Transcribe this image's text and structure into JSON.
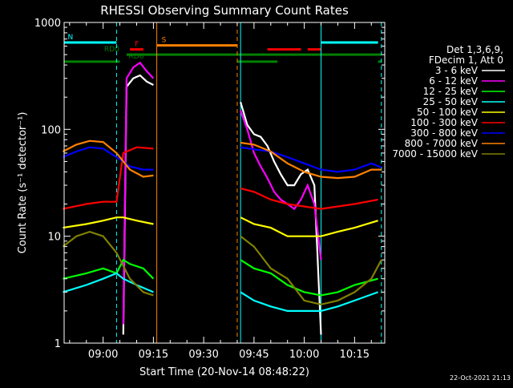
{
  "chart_data": {
    "type": "line",
    "title": "RHESSI Observing Summary Count Rates",
    "xlabel": "Start Time (20-Nov-14 08:48:22)",
    "ylabel": "Count Rate (s⁻¹ detector⁻¹)",
    "yscale": "log",
    "ylim": [
      1,
      1000
    ],
    "xlim": [
      "08:48:22",
      "10:24:00"
    ],
    "xticks": [
      "09:00",
      "09:15",
      "09:30",
      "09:45",
      "10:00",
      "10:15"
    ],
    "yticks": [
      "1",
      "10",
      "100",
      "1000"
    ],
    "legend_header": [
      "Det 1,3,6,9,",
      "FDecim 1, Att 0"
    ],
    "legend_placement": "right",
    "timestamp": "22-Oct-2021 21:13",
    "flags": [
      {
        "label": "N",
        "color": "#00ffff",
        "level": 650,
        "segments": [
          [
            "08:48",
            "09:04"
          ],
          [
            "10:05",
            "10:22"
          ]
        ]
      },
      {
        "label": "S",
        "color": "#ff8000",
        "level": 610,
        "segments": [
          [
            "09:16",
            "09:40"
          ]
        ]
      },
      {
        "label": "F",
        "color": "#ff0000",
        "level": 560,
        "segments": [
          [
            "09:08",
            "09:12"
          ],
          [
            "09:49",
            "09:59"
          ],
          [
            "10:01",
            "10:05"
          ]
        ]
      },
      {
        "label": "RD0",
        "color": "#008000",
        "level": 500,
        "segments": [
          [
            "09:07",
            "10:23"
          ]
        ]
      },
      {
        "label": "RD6",
        "color": "#008000",
        "level": 430,
        "segments": [
          [
            "08:48",
            "09:05"
          ],
          [
            "09:40",
            "09:52"
          ],
          [
            "10:22",
            "10:23"
          ]
        ]
      }
    ],
    "vlines": [
      {
        "time": "09:04",
        "color": "#00ffff",
        "style": "dashed"
      },
      {
        "time": "09:16",
        "color": "#ff8000",
        "style": "solid"
      },
      {
        "time": "09:40",
        "color": "#ff8000",
        "style": "dashed"
      },
      {
        "time": "09:41",
        "color": "#00ffff",
        "style": "solid"
      },
      {
        "time": "10:05",
        "color": "#00ffff",
        "style": "solid"
      },
      {
        "time": "10:23",
        "color": "#00ffff",
        "style": "dashed"
      }
    ],
    "series": [
      {
        "name": "3 - 6 keV",
        "color": "#ffffff",
        "points": [
          [
            "09:06",
            1.2
          ],
          [
            "09:07",
            250
          ],
          [
            "09:09",
            300
          ],
          [
            "09:11",
            320
          ],
          [
            "09:13",
            280
          ],
          [
            "09:15",
            260
          ],
          "gap",
          [
            "09:41",
            180
          ],
          [
            "09:43",
            110
          ],
          [
            "09:45",
            90
          ],
          [
            "09:47",
            85
          ],
          [
            "09:49",
            70
          ],
          [
            "09:51",
            50
          ],
          [
            "09:53",
            38
          ],
          [
            "09:55",
            30
          ],
          [
            "09:57",
            30
          ],
          [
            "09:59",
            38
          ],
          [
            "10:01",
            42
          ],
          [
            "10:03",
            30
          ],
          [
            "10:05",
            1.2
          ]
        ]
      },
      {
        "name": "6 - 12 keV",
        "color": "#ff00ff",
        "points": [
          [
            "09:06",
            1.5
          ],
          [
            "09:07",
            300
          ],
          [
            "09:09",
            380
          ],
          [
            "09:11",
            420
          ],
          [
            "09:13",
            350
          ],
          [
            "09:15",
            300
          ],
          "gap",
          [
            "09:41",
            150
          ],
          [
            "09:43",
            100
          ],
          [
            "09:45",
            60
          ],
          [
            "09:47",
            45
          ],
          [
            "09:49",
            35
          ],
          [
            "09:51",
            26
          ],
          [
            "09:53",
            22
          ],
          [
            "09:55",
            20
          ],
          [
            "09:57",
            18
          ],
          [
            "09:59",
            22
          ],
          [
            "10:01",
            30
          ],
          [
            "10:03",
            20
          ],
          [
            "10:05",
            6
          ]
        ]
      },
      {
        "name": "12 - 25 keV",
        "color": "#00ff00",
        "points": [
          [
            "08:48",
            4
          ],
          [
            "08:55",
            4.5
          ],
          [
            "09:00",
            5
          ],
          [
            "09:04",
            4.5
          ],
          [
            "09:06",
            6
          ],
          [
            "09:08",
            5.5
          ],
          [
            "09:12",
            5
          ],
          [
            "09:15",
            4
          ],
          "gap",
          [
            "09:41",
            6
          ],
          [
            "09:45",
            5
          ],
          [
            "09:50",
            4.5
          ],
          [
            "09:55",
            3.5
          ],
          [
            "10:00",
            3
          ],
          [
            "10:05",
            2.8
          ],
          [
            "10:10",
            3
          ],
          [
            "10:15",
            3.5
          ],
          [
            "10:22",
            4
          ]
        ]
      },
      {
        "name": "25 - 50 keV",
        "color": "#00ffff",
        "points": [
          [
            "08:48",
            3
          ],
          [
            "08:55",
            3.5
          ],
          [
            "09:00",
            4
          ],
          [
            "09:04",
            4.5
          ],
          [
            "09:06",
            4
          ],
          [
            "09:10",
            3.5
          ],
          [
            "09:15",
            3
          ],
          "gap",
          [
            "09:41",
            3
          ],
          [
            "09:45",
            2.5
          ],
          [
            "09:50",
            2.2
          ],
          [
            "09:55",
            2
          ],
          [
            "10:00",
            2
          ],
          [
            "10:05",
            2
          ],
          [
            "10:10",
            2.2
          ],
          [
            "10:15",
            2.5
          ],
          [
            "10:22",
            3
          ]
        ]
      },
      {
        "name": "50 - 100 keV",
        "color": "#ffff00",
        "points": [
          [
            "08:48",
            12
          ],
          [
            "08:55",
            13
          ],
          [
            "09:00",
            14
          ],
          [
            "09:04",
            15
          ],
          [
            "09:06",
            15
          ],
          [
            "09:10",
            14
          ],
          [
            "09:15",
            13
          ],
          "gap",
          [
            "09:41",
            15
          ],
          [
            "09:45",
            13
          ],
          [
            "09:50",
            12
          ],
          [
            "09:55",
            10
          ],
          [
            "10:00",
            10
          ],
          [
            "10:05",
            10
          ],
          [
            "10:10",
            11
          ],
          [
            "10:15",
            12
          ],
          [
            "10:22",
            14
          ]
        ]
      },
      {
        "name": "100 - 300 keV",
        "color": "#ff0000",
        "points": [
          [
            "08:48",
            18
          ],
          [
            "08:55",
            20
          ],
          [
            "09:00",
            21
          ],
          [
            "09:04",
            21
          ],
          [
            "09:06",
            60
          ],
          [
            "09:10",
            68
          ],
          [
            "09:15",
            66
          ],
          "gap",
          [
            "09:41",
            28
          ],
          [
            "09:45",
            26
          ],
          [
            "09:50",
            22
          ],
          [
            "09:55",
            20
          ],
          [
            "10:00",
            19
          ],
          [
            "10:05",
            18
          ],
          [
            "10:10",
            19
          ],
          [
            "10:15",
            20
          ],
          [
            "10:22",
            22
          ]
        ]
      },
      {
        "name": "300 - 800 keV",
        "color": "#0000ff",
        "points": [
          [
            "08:48",
            55
          ],
          [
            "08:52",
            62
          ],
          [
            "08:56",
            68
          ],
          [
            "09:00",
            66
          ],
          [
            "09:04",
            55
          ],
          [
            "09:08",
            45
          ],
          [
            "09:12",
            42
          ],
          [
            "09:15",
            42
          ],
          "gap",
          [
            "09:41",
            68
          ],
          [
            "09:45",
            65
          ],
          [
            "09:50",
            62
          ],
          [
            "09:55",
            55
          ],
          [
            "10:00",
            48
          ],
          [
            "10:05",
            42
          ],
          [
            "10:10",
            40
          ],
          [
            "10:15",
            42
          ],
          [
            "10:20",
            48
          ],
          [
            "10:23",
            44
          ]
        ]
      },
      {
        "name": "800 - 7000 keV",
        "color": "#ff8000",
        "points": [
          [
            "08:48",
            62
          ],
          [
            "08:52",
            72
          ],
          [
            "08:56",
            78
          ],
          [
            "09:00",
            76
          ],
          [
            "09:04",
            60
          ],
          [
            "09:08",
            42
          ],
          [
            "09:12",
            36
          ],
          [
            "09:15",
            37
          ],
          "gap",
          [
            "09:41",
            75
          ],
          [
            "09:45",
            72
          ],
          [
            "09:50",
            62
          ],
          [
            "09:55",
            48
          ],
          [
            "10:00",
            40
          ],
          [
            "10:05",
            36
          ],
          [
            "10:10",
            35
          ],
          [
            "10:15",
            36
          ],
          [
            "10:20",
            42
          ],
          [
            "10:23",
            42
          ]
        ]
      },
      {
        "name": "7000 - 15000 keV",
        "color": "#808000",
        "points": [
          [
            "08:48",
            8
          ],
          [
            "08:52",
            10
          ],
          [
            "08:56",
            11
          ],
          [
            "09:00",
            10
          ],
          [
            "09:04",
            7
          ],
          [
            "09:08",
            4
          ],
          [
            "09:12",
            3
          ],
          [
            "09:15",
            2.8
          ],
          "gap",
          [
            "09:41",
            10
          ],
          [
            "09:45",
            8
          ],
          [
            "09:50",
            5
          ],
          [
            "09:55",
            4
          ],
          [
            "10:00",
            2.5
          ],
          [
            "10:05",
            2.3
          ],
          [
            "10:10",
            2.5
          ],
          [
            "10:15",
            3
          ],
          [
            "10:20",
            4
          ],
          [
            "10:23",
            6
          ]
        ]
      }
    ]
  }
}
